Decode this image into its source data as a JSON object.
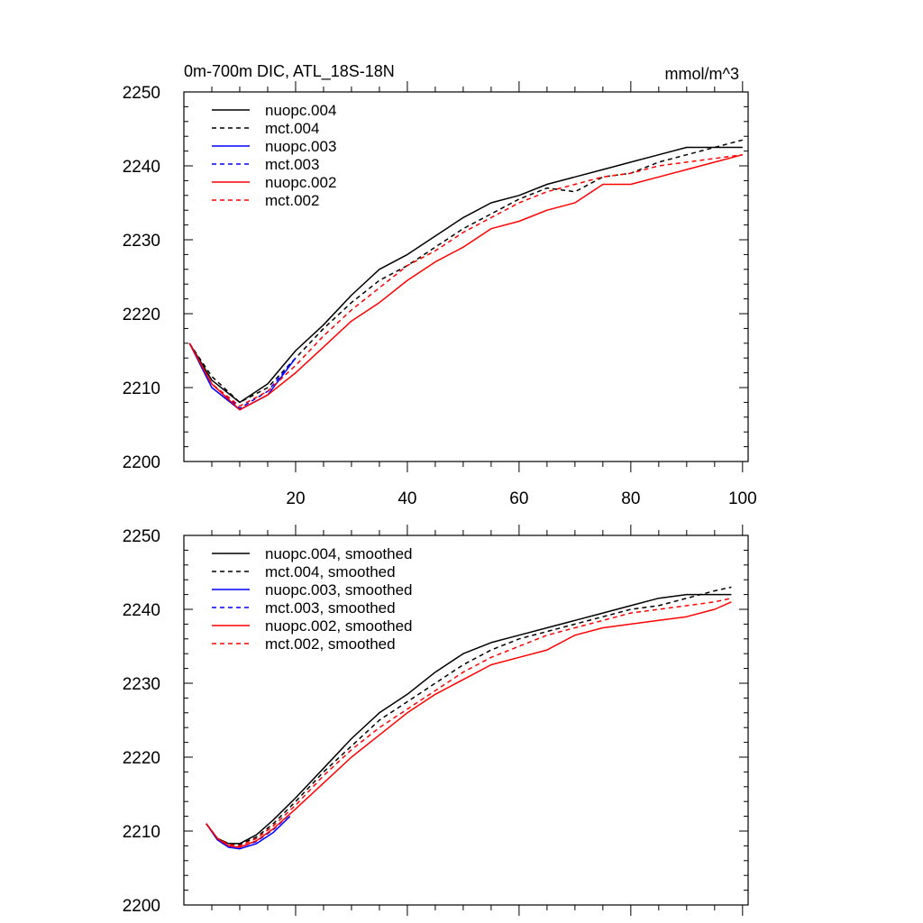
{
  "chart_data": [
    {
      "type": "line",
      "title": "0m-700m DIC, ATL_18S-18N",
      "units": "mmol/m^3",
      "xlim": [
        0,
        101
      ],
      "ylim": [
        2200,
        2250
      ],
      "xticks": [
        20,
        40,
        60,
        80,
        100
      ],
      "xtick_labels": [
        "20",
        "40",
        "60",
        "80",
        "100"
      ],
      "yticks": [
        2200,
        2210,
        2220,
        2230,
        2240,
        2250
      ],
      "ytick_labels": [
        "2200",
        "2210",
        "2220",
        "2230",
        "2240",
        "2250"
      ],
      "legend_position": "top-left",
      "grid": false,
      "series": [
        {
          "name": "nuopc.004",
          "color": "#000000",
          "dash": "solid",
          "x": [
            1,
            5,
            10,
            15,
            20,
            25,
            30,
            35,
            40,
            45,
            50,
            55,
            60,
            65,
            70,
            75,
            80,
            85,
            90,
            95,
            100
          ],
          "y": [
            2216,
            2211,
            2208,
            2210.5,
            2215,
            2218.5,
            2222.5,
            2226,
            2228,
            2230.5,
            2233,
            2235,
            2236,
            2237.5,
            2238.5,
            2239.5,
            2240.5,
            2241.5,
            2242.5,
            2242.5,
            2242.5
          ]
        },
        {
          "name": "mct.004",
          "color": "#000000",
          "dash": "dashed",
          "x": [
            1,
            5,
            10,
            15,
            20,
            25,
            30,
            35,
            40,
            45,
            50,
            55,
            60,
            65,
            70,
            75,
            80,
            85,
            90,
            95,
            100
          ],
          "y": [
            2216,
            2211.5,
            2208,
            2210,
            2214,
            2218,
            2221.5,
            2224.5,
            2226.5,
            2229,
            2231.5,
            2233.5,
            2235.5,
            2237,
            2236.5,
            2238.5,
            2239,
            2240.5,
            2241.5,
            2242.5,
            2243.5
          ]
        },
        {
          "name": "nuopc.003",
          "color": "#0000ff",
          "dash": "solid",
          "x": [
            1,
            5,
            10,
            15,
            20
          ],
          "y": [
            2216,
            2210,
            2207,
            2209,
            2214
          ]
        },
        {
          "name": "mct.003",
          "color": "#0000ff",
          "dash": "dashed",
          "x": [
            1,
            5,
            10,
            15,
            20
          ],
          "y": [
            2216,
            2210.5,
            2207.2,
            2209.5,
            2214
          ]
        },
        {
          "name": "nuopc.002",
          "color": "#ff0000",
          "dash": "solid",
          "x": [
            1,
            5,
            10,
            15,
            20,
            25,
            30,
            35,
            40,
            45,
            50,
            55,
            60,
            65,
            70,
            75,
            80,
            85,
            90,
            95,
            100
          ],
          "y": [
            2216,
            2210.5,
            2207,
            2209,
            2212,
            2215.5,
            2219,
            2221.5,
            2224.5,
            2227,
            2229,
            2231.5,
            2232.5,
            2234,
            2235,
            2237.5,
            2237.5,
            2238.5,
            2239.5,
            2240.5,
            2241.5
          ]
        },
        {
          "name": "mct.002",
          "color": "#ff0000",
          "dash": "dashed",
          "x": [
            1,
            5,
            10,
            15,
            20,
            25,
            30,
            35,
            40,
            45,
            50,
            55,
            60,
            65,
            70,
            75,
            80,
            85,
            90,
            95,
            100
          ],
          "y": [
            2216,
            2210.5,
            2207.5,
            2209.5,
            2213,
            2217,
            2220.5,
            2223.5,
            2226.5,
            2228.5,
            2231,
            2233,
            2235,
            2236.5,
            2237.5,
            2238.5,
            2239,
            2240,
            2240.5,
            2241,
            2241.5
          ]
        }
      ]
    },
    {
      "type": "line",
      "xlim": [
        0,
        101
      ],
      "ylim": [
        2200,
        2250
      ],
      "xticks": [
        20,
        40,
        60,
        80,
        100
      ],
      "yticks": [
        2200,
        2210,
        2220,
        2230,
        2240,
        2250
      ],
      "ytick_labels": [
        "2200",
        "2210",
        "2220",
        "2230",
        "2240",
        "2250"
      ],
      "legend_position": "top-left",
      "grid": false,
      "series": [
        {
          "name": "nuopc.004, smoothed",
          "color": "#000000",
          "dash": "solid",
          "x": [
            4,
            6,
            8,
            10,
            13,
            16,
            20,
            25,
            30,
            35,
            40,
            45,
            50,
            55,
            60,
            65,
            70,
            75,
            80,
            85,
            90,
            95,
            98
          ],
          "y": [
            2211,
            2209,
            2208.3,
            2208.3,
            2209.5,
            2211.5,
            2214.5,
            2218.5,
            2222.5,
            2226,
            2228.5,
            2231.5,
            2234,
            2235.5,
            2236.5,
            2237.5,
            2238.5,
            2239.5,
            2240.5,
            2241.5,
            2242,
            2242,
            2242
          ]
        },
        {
          "name": "mct.004, smoothed",
          "color": "#000000",
          "dash": "dashed",
          "x": [
            4,
            6,
            8,
            10,
            13,
            16,
            20,
            25,
            30,
            35,
            40,
            45,
            50,
            55,
            60,
            65,
            70,
            75,
            80,
            85,
            90,
            95,
            98
          ],
          "y": [
            2211,
            2209,
            2208.3,
            2208.2,
            2209.2,
            2211,
            2214,
            2218,
            2221.5,
            2225,
            2227.5,
            2230,
            2232.5,
            2234.5,
            2236,
            2237,
            2238,
            2239,
            2240,
            2240.5,
            2241.5,
            2242.5,
            2243
          ]
        },
        {
          "name": "nuopc.003, smoothed",
          "color": "#0000ff",
          "dash": "solid",
          "x": [
            4,
            6,
            8,
            10,
            13,
            16,
            19
          ],
          "y": [
            2211,
            2208.8,
            2207.8,
            2207.6,
            2208.3,
            2209.8,
            2212
          ]
        },
        {
          "name": "mct.003, smoothed",
          "color": "#0000ff",
          "dash": "dashed",
          "x": [
            4,
            6,
            8,
            10,
            13,
            16,
            19
          ],
          "y": [
            2211,
            2209,
            2208,
            2207.8,
            2208.6,
            2210.2,
            2212.3
          ]
        },
        {
          "name": "nuopc.002, smoothed",
          "color": "#ff0000",
          "dash": "solid",
          "x": [
            4,
            6,
            8,
            10,
            13,
            16,
            20,
            25,
            30,
            35,
            40,
            45,
            50,
            55,
            60,
            65,
            70,
            75,
            80,
            85,
            90,
            95,
            98
          ],
          "y": [
            2211,
            2209,
            2208,
            2207.8,
            2208.7,
            2210.3,
            2213,
            2216.5,
            2220,
            2223,
            2226,
            2228.5,
            2230.5,
            2232.5,
            2233.5,
            2234.5,
            2236.5,
            2237.5,
            2238,
            2238.5,
            2239,
            2240,
            2241
          ]
        },
        {
          "name": "mct.002, smoothed",
          "color": "#ff0000",
          "dash": "dashed",
          "x": [
            4,
            6,
            8,
            10,
            13,
            16,
            20,
            25,
            30,
            35,
            40,
            45,
            50,
            55,
            60,
            65,
            70,
            75,
            80,
            85,
            90,
            95,
            98
          ],
          "y": [
            2211,
            2209,
            2208.2,
            2208,
            2209,
            2210.7,
            2213.5,
            2217.5,
            2221,
            2224,
            2226.5,
            2229,
            2231.5,
            2233.5,
            2235,
            2236.5,
            2237.5,
            2238.5,
            2239.5,
            2240,
            2240.5,
            2241,
            2241.5
          ]
        }
      ]
    }
  ]
}
